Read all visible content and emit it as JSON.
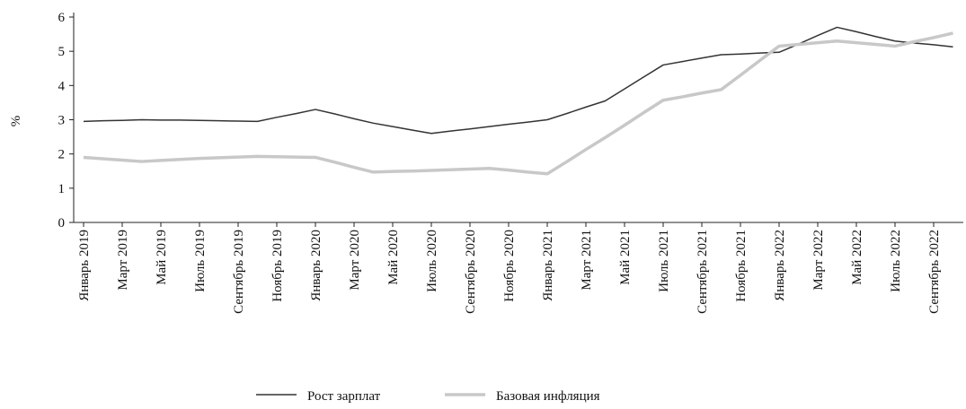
{
  "chart_data": {
    "type": "line",
    "ylabel": "%",
    "categories": [
      "Январь 2019",
      null,
      "Март 2019",
      null,
      "Май 2019",
      null,
      "Июль 2019",
      null,
      "Сентябрь 2019",
      null,
      "Ноябрь 2019",
      null,
      "Январь 2020",
      null,
      "Март 2020",
      null,
      "Май 2020",
      null,
      "Июль 2020",
      null,
      "Сентябрь 2020",
      null,
      "Ноябрь 2020",
      null,
      "Январь 2021",
      null,
      "Март 2021",
      null,
      "Май 2021",
      null,
      "Июль 2021",
      null,
      "Сентябрь 2021",
      null,
      "Ноябрь 2021",
      null,
      "Январь 2022",
      null,
      "Март 2022",
      null,
      "Май 2022",
      null,
      "Июль 2022",
      null,
      "Сентябрь 2022",
      null
    ],
    "series": [
      {
        "name": "Рост зарплат",
        "color": "#333333",
        "width": 1.5,
        "values": [
          2.95,
          2.97,
          2.98,
          3.0,
          2.99,
          2.99,
          2.98,
          2.97,
          2.96,
          2.95,
          3.07,
          3.18,
          3.3,
          3.17,
          3.03,
          2.9,
          2.8,
          2.7,
          2.6,
          2.67,
          2.73,
          2.8,
          2.87,
          2.93,
          3.0,
          3.18,
          3.37,
          3.55,
          3.9,
          4.25,
          4.6,
          4.7,
          4.8,
          4.9,
          4.92,
          4.95,
          4.97,
          5.21,
          5.46,
          5.7,
          5.57,
          5.43,
          5.3,
          5.24,
          5.19,
          5.13
        ]
      },
      {
        "name": "Базовая инфляция",
        "color": "#c8c8c8",
        "width": 3.5,
        "values": [
          1.9,
          1.86,
          1.82,
          1.78,
          1.81,
          1.84,
          1.87,
          1.89,
          1.91,
          1.93,
          1.92,
          1.91,
          1.9,
          1.76,
          1.61,
          1.47,
          1.49,
          1.5,
          1.52,
          1.54,
          1.56,
          1.58,
          1.53,
          1.47,
          1.42,
          1.77,
          2.13,
          2.48,
          2.84,
          3.21,
          3.57,
          3.67,
          3.78,
          3.88,
          4.3,
          4.73,
          5.15,
          5.2,
          5.25,
          5.3,
          5.25,
          5.2,
          5.15,
          5.28,
          5.4,
          5.53
        ]
      }
    ],
    "ylim": [
      0,
      6
    ],
    "yticks": [
      0,
      1,
      2,
      3,
      4,
      5,
      6
    ],
    "legend": "bottom"
  }
}
